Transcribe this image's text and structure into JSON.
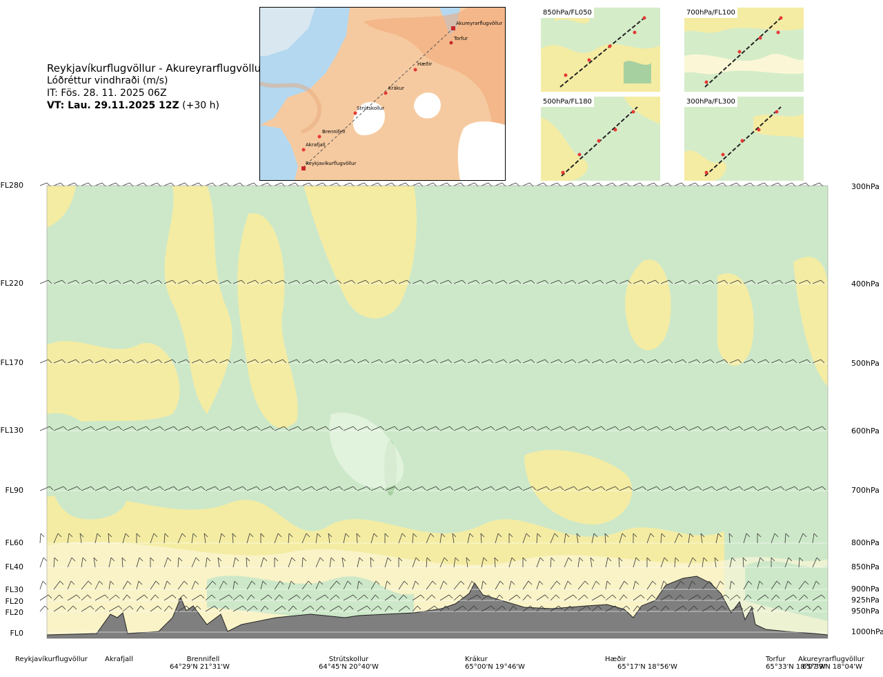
{
  "header": {
    "route": "Reykjavíkurflugvöllur - Akureyrarflugvöllur",
    "variable": "Lóðréttur vindhraði (m/s)",
    "issue_time": "IT: Fös. 28. 11. 2025 06Z",
    "valid_time": "VT: Lau. 29.11.2025 12Z",
    "lead": "(+30 h)"
  },
  "map": {
    "points": [
      {
        "name": "Akureyrarflugvöllur"
      },
      {
        "name": "Torfur"
      },
      {
        "name": "Hæðir"
      },
      {
        "name": "Krákur"
      },
      {
        "name": "Strútskollur"
      },
      {
        "name": "Brennifell"
      },
      {
        "name": "Akrafjall"
      },
      {
        "name": "Reykjavíkurflugvöllur"
      }
    ]
  },
  "panels": [
    {
      "label": "850hPa/FL050"
    },
    {
      "label": "700hPa/FL100"
    },
    {
      "label": "500hPa/FL180"
    },
    {
      "label": "300hPa/FL300"
    }
  ],
  "colors": {
    "green": "#cde8c9",
    "lightgreen": "#e9f6e5",
    "yellow": "#f4eca3",
    "lightyellow": "#fbf7d6",
    "darkgreen": "#a7d0a1",
    "terrain": "#7f7f7f"
  },
  "chart_data": {
    "type": "heatmap",
    "title": "Lóðréttur vindhraði (m/s)",
    "left_axis_labels": [
      "FL280",
      "FL220",
      "FL170",
      "FL130",
      "FL90",
      "FL60",
      "FL40",
      "FL30",
      "FL20",
      "FL20",
      "FL0"
    ],
    "right_axis_labels": [
      "300hPa",
      "400hPa",
      "500hPa",
      "600hPa",
      "700hPa",
      "800hPa",
      "850hPa",
      "900hPa",
      "925hPa",
      "950hPa",
      "1000hPa"
    ],
    "pressure_levels_hpa": [
      300,
      400,
      500,
      600,
      700,
      800,
      850,
      900,
      925,
      950,
      1000
    ],
    "sites": [
      {
        "name": "Reykjavíkurflugvöllur",
        "coord": ""
      },
      {
        "name": "Akrafjall",
        "coord": ""
      },
      {
        "name": "Brennifell",
        "coord": "64°29'N 21°31'W"
      },
      {
        "name": "Strútskollur",
        "coord": "64°45'N 20°40'W"
      },
      {
        "name": "Krákur",
        "coord": "65°00'N 19°46'W"
      },
      {
        "name": "Hæðir",
        "coord": "65°17'N 18°56'W"
      },
      {
        "name": "Torfur",
        "coord": "65°33'N 18°07'W"
      },
      {
        "name": "Akureyrarflugvöllur",
        "coord": "65°39'N 18°04'W"
      }
    ]
  }
}
